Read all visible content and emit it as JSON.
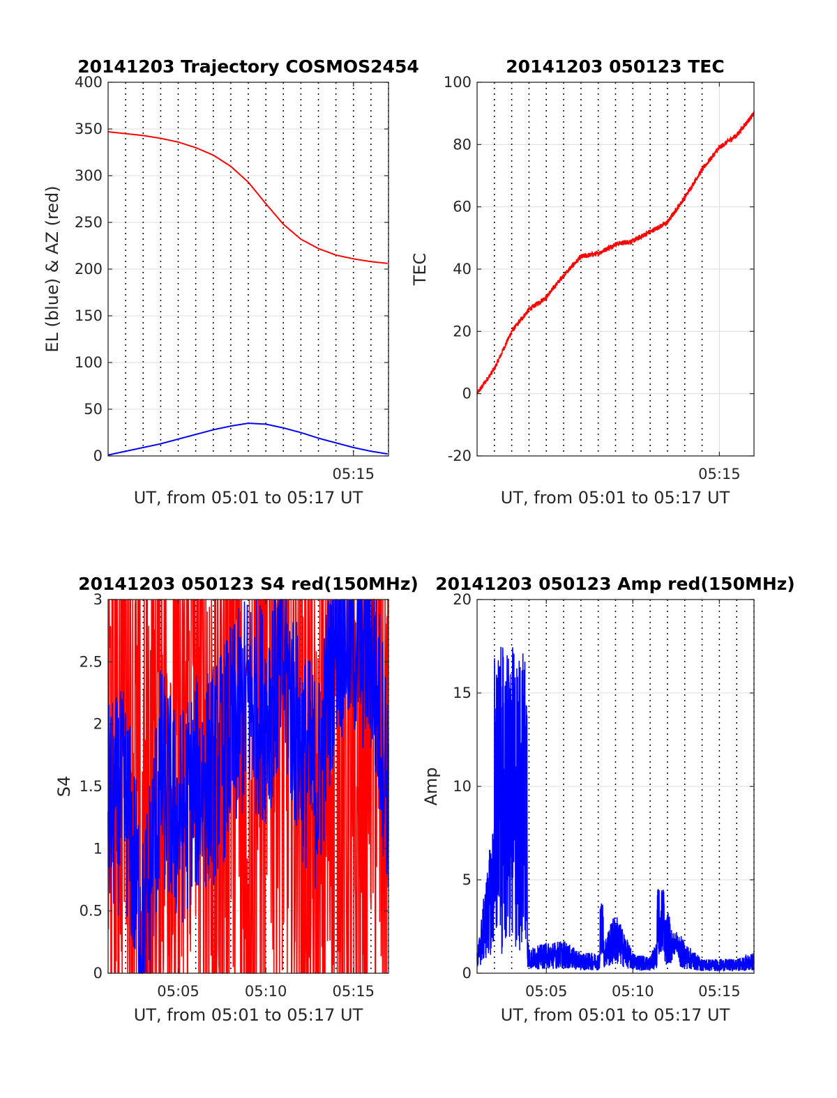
{
  "chart_data": [
    {
      "type": "line",
      "title": "20141203 Trajectory COSMOS2454",
      "xlabel": "UT, from 05:01 to 05:17 UT",
      "ylabel": "EL (blue) & AZ (red)",
      "xlim": [
        "05:01",
        "05:17"
      ],
      "ylim": [
        0,
        400
      ],
      "x_ticks": [
        "05:15"
      ],
      "y_ticks": [
        "0",
        "50",
        "100",
        "150",
        "200",
        "250",
        "300",
        "350",
        "400"
      ],
      "grid": true,
      "x": [
        "05:01",
        "05:02",
        "05:03",
        "05:04",
        "05:05",
        "05:06",
        "05:07",
        "05:08",
        "05:09",
        "05:10",
        "05:11",
        "05:12",
        "05:13",
        "05:14",
        "05:15",
        "05:16",
        "05:17"
      ],
      "series": [
        {
          "color": "#ff0000",
          "values": [
            347,
            345,
            343,
            340,
            336,
            330,
            322,
            310,
            293,
            270,
            248,
            232,
            222,
            215,
            211,
            208,
            206
          ]
        },
        {
          "color": "#0000ff",
          "values": [
            1,
            5,
            9,
            13,
            18,
            23,
            28,
            32,
            35,
            34,
            30,
            25,
            19,
            14,
            9,
            5,
            2
          ]
        }
      ]
    },
    {
      "type": "line",
      "title": "20141203 050123 TEC",
      "xlabel": "UT, from 05:01 to 05:17 UT",
      "ylabel": "TEC",
      "xlim": [
        "05:01",
        "05:17"
      ],
      "ylim": [
        -20,
        100
      ],
      "x_ticks": [
        "05:15"
      ],
      "y_ticks": [
        "-20",
        "0",
        "20",
        "40",
        "60",
        "80",
        "100"
      ],
      "grid": true,
      "x": [
        "05:01",
        "05:02",
        "05:03",
        "05:04",
        "05:05",
        "05:06",
        "05:07",
        "05:08",
        "05:09",
        "05:10",
        "05:11",
        "05:12",
        "05:13",
        "05:14",
        "05:15",
        "05:16",
        "05:17"
      ],
      "series": [
        {
          "color": "#ff0000",
          "values": [
            0,
            8,
            20,
            27,
            31,
            38,
            44,
            45,
            48,
            49,
            52,
            55,
            63,
            72,
            79,
            83,
            90
          ]
        }
      ]
    },
    {
      "type": "line",
      "title": "20141203 050123 S4 red(150MHz)",
      "xlabel": "UT, from 05:01 to 05:17 UT",
      "ylabel": "S4",
      "xlim": [
        "05:01",
        "05:17"
      ],
      "ylim": [
        0,
        3
      ],
      "x_ticks": [
        "05:05",
        "05:10",
        "05:15"
      ],
      "y_ticks": [
        "0",
        "0.5",
        "1",
        "1.5",
        "2",
        "2.5",
        "3"
      ],
      "grid": true,
      "x": [
        "05:01",
        "05:02",
        "05:03",
        "05:04",
        "05:05",
        "05:06",
        "05:07",
        "05:08",
        "05:09",
        "05:10",
        "05:11",
        "05:12",
        "05:13",
        "05:14",
        "05:15",
        "05:16",
        "05:17"
      ],
      "series": [
        {
          "color": "#ff0000",
          "values": [
            1.5,
            3.0,
            0.2,
            2.5,
            1.2,
            3.0,
            1.0,
            2.8,
            0.5,
            3.0,
            2.6,
            1.8,
            0.0,
            3.0,
            0.3,
            3.0,
            1.4
          ]
        },
        {
          "color": "#0000ff",
          "values": [
            1.3,
            1.4,
            0.25,
            1.6,
            1.2,
            1.5,
            1.6,
            1.9,
            2.2,
            2.1,
            2.5,
            1.8,
            1.5,
            2.8,
            2.7,
            2.6,
            1.5
          ]
        }
      ]
    },
    {
      "type": "line",
      "title": "20141203 050123 Amp red(150MHz)",
      "xlabel": "UT, from 05:01 to 05:17 UT",
      "ylabel": "Amp",
      "xlim": [
        "05:01",
        "05:17"
      ],
      "ylim": [
        0,
        20
      ],
      "x_ticks": [
        "05:05",
        "05:10",
        "05:15"
      ],
      "y_ticks": [
        "0",
        "5",
        "10",
        "15",
        "20"
      ],
      "grid": true,
      "x": [
        "05:01",
        "05:02",
        "05:03",
        "05:04",
        "05:05",
        "05:06",
        "05:07",
        "05:08",
        "05:09",
        "05:10",
        "05:11",
        "05:12",
        "05:13",
        "05:14",
        "05:15",
        "05:16",
        "05:17"
      ],
      "series": [
        {
          "color": "#0000ff",
          "values": [
            1.0,
            8.0,
            12.0,
            1.2,
            1.5,
            1.6,
            1.0,
            1.0,
            3.0,
            1.0,
            0.8,
            3.0,
            1.5,
            0.7,
            0.7,
            0.7,
            1.0
          ]
        }
      ]
    }
  ]
}
